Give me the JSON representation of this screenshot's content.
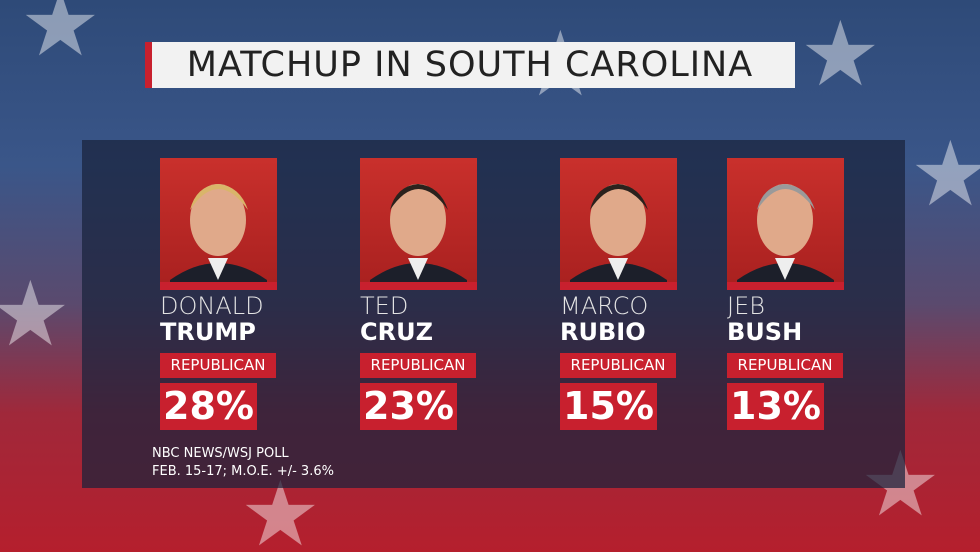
{
  "title": "MATCHUP IN SOUTH CAROLINA",
  "candidates": [
    {
      "first": "DONALD",
      "last": "TRUMP",
      "party": "REPUBLICAN",
      "percent": "28%"
    },
    {
      "first": "TED",
      "last": "CRUZ",
      "party": "REPUBLICAN",
      "percent": "23%"
    },
    {
      "first": "MARCO",
      "last": "RUBIO",
      "party": "REPUBLICAN",
      "percent": "15%"
    },
    {
      "first": "JEB",
      "last": "BUSH",
      "party": "REPUBLICAN",
      "percent": "13%"
    }
  ],
  "source": [
    "NBC NEWS/WSJ POLL",
    "FEB. 15-17; M.O.E. +/- 3.6%"
  ]
}
